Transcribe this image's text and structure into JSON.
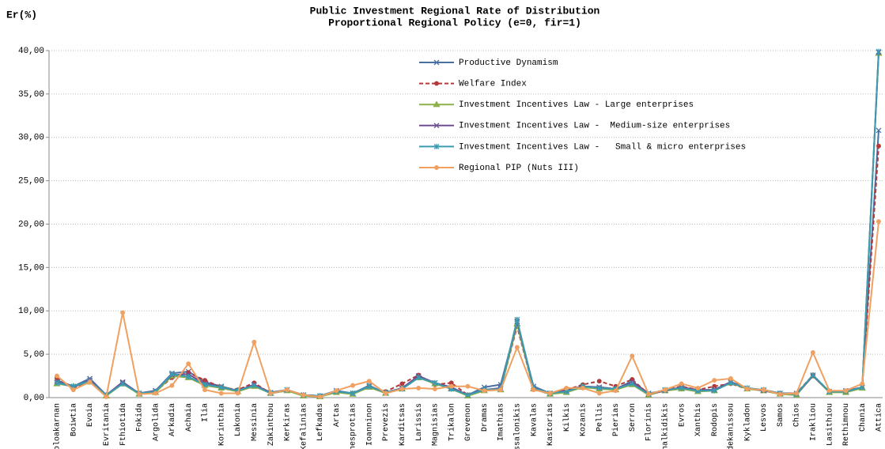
{
  "chart_data": {
    "type": "line",
    "title": "Public Investment Regional Rate of Distribution",
    "subtitle": "Proportional Regional Policy (e=0, fir=1)",
    "y_label": "Er(%)",
    "categories": [
      "itoloakarnan",
      "Boiwtia",
      "Evoia",
      "Evritania",
      "Fthiotida",
      "Fokida",
      "Argolida",
      "Arkadia",
      "Achaia",
      "Ilia",
      "Korinthia",
      "Lakonia",
      "Messinia",
      "Zakinthou",
      "Kerkiras",
      "Kefalinias",
      "Lefkadas",
      "Artas",
      "Thesprotias",
      "Ioanninon",
      "Prevezis",
      "Karditsas",
      "Larissis",
      "Magnisias",
      "Trikalon",
      "Grevenon",
      "Dramas",
      "Imathias",
      "essalonikis",
      "Kavalas",
      "Kastorias",
      "Kilkis",
      "Kozanis",
      "Pellis",
      "Pierias",
      "Serron",
      "Florinis",
      "Chalkidikis",
      "Evros",
      "Xanthis",
      "Rodopis",
      "odekanissou",
      "Kykladon",
      "Lesvos",
      "Samos",
      "Chios",
      "Irakliou",
      "Lasithiou",
      "Rethimnou",
      "Chania",
      "Attica"
    ],
    "series": [
      {
        "name": "Productive Dynamism",
        "color": "#4a6fa5",
        "marker": "x",
        "dash": false,
        "values": [
          2.0,
          1.3,
          2.2,
          0.3,
          1.7,
          0.5,
          0.8,
          2.8,
          3.0,
          1.8,
          1.3,
          0.8,
          1.5,
          0.6,
          0.9,
          0.3,
          0.2,
          0.8,
          0.5,
          1.4,
          0.5,
          1.1,
          2.4,
          1.7,
          1.2,
          0.3,
          1.2,
          1.5,
          8.7,
          1.3,
          0.5,
          0.9,
          1.3,
          1.2,
          1.0,
          1.9,
          0.5,
          0.8,
          1.2,
          0.9,
          0.9,
          1.8,
          1.1,
          0.8,
          0.5,
          0.5,
          2.5,
          0.7,
          0.8,
          1.2,
          30.8
        ]
      },
      {
        "name": "Welfare Index",
        "color": "#b23a3a",
        "marker": "circle",
        "dash": true,
        "values": [
          2.3,
          1.1,
          1.8,
          0.3,
          1.7,
          0.5,
          0.7,
          2.3,
          2.9,
          2.0,
          1.2,
          0.9,
          1.7,
          0.5,
          0.8,
          0.3,
          0.2,
          0.7,
          0.5,
          1.3,
          0.7,
          1.6,
          2.6,
          1.5,
          1.7,
          0.3,
          0.8,
          1.0,
          8.2,
          1.0,
          0.4,
          0.9,
          1.5,
          1.9,
          1.3,
          2.1,
          0.4,
          0.9,
          1.3,
          0.9,
          1.3,
          1.6,
          1.0,
          0.9,
          0.5,
          0.5,
          2.6,
          0.7,
          0.7,
          1.1,
          29.0
        ]
      },
      {
        "name": "Investment Incentives Law - Large enterprises",
        "color": "#8db04a",
        "marker": "triangle",
        "dash": false,
        "values": [
          1.6,
          1.3,
          1.8,
          0.2,
          1.6,
          0.4,
          0.6,
          2.5,
          2.3,
          1.4,
          1.1,
          0.7,
          1.3,
          0.5,
          0.8,
          0.2,
          0.1,
          0.6,
          0.4,
          1.2,
          0.5,
          1.0,
          2.3,
          1.6,
          1.0,
          0.2,
          0.8,
          0.9,
          8.5,
          1.0,
          0.4,
          0.6,
          1.2,
          1.0,
          0.9,
          1.5,
          0.3,
          0.8,
          1.0,
          0.7,
          0.8,
          1.7,
          1.0,
          0.8,
          0.4,
          0.3,
          2.5,
          0.6,
          0.6,
          1.1,
          39.7
        ]
      },
      {
        "name": "Investment Incentives Law -  Medium-size enterprises",
        "color": "#6f4e92",
        "marker": "x",
        "dash": false,
        "values": [
          1.8,
          1.2,
          2.0,
          0.3,
          1.8,
          0.5,
          0.8,
          2.6,
          2.7,
          1.6,
          1.2,
          0.8,
          1.5,
          0.5,
          0.9,
          0.3,
          0.2,
          0.7,
          0.5,
          1.3,
          0.6,
          1.1,
          2.5,
          1.7,
          1.1,
          0.3,
          0.9,
          1.1,
          8.8,
          1.1,
          0.5,
          0.8,
          1.3,
          1.2,
          1.0,
          1.8,
          0.4,
          0.8,
          1.2,
          0.8,
          0.9,
          1.8,
          1.1,
          0.8,
          0.5,
          0.4,
          2.5,
          0.7,
          0.7,
          1.2,
          39.8
        ]
      },
      {
        "name": "Investment Incentives Law -   Small & micro enterprises",
        "color": "#3b9cb0",
        "marker": "star",
        "dash": false,
        "values": [
          1.7,
          1.3,
          1.9,
          0.3,
          1.6,
          0.5,
          0.7,
          2.7,
          2.4,
          1.5,
          1.2,
          0.8,
          1.4,
          0.5,
          0.9,
          0.3,
          0.2,
          0.7,
          0.5,
          1.3,
          0.6,
          1.0,
          2.3,
          1.7,
          1.0,
          0.3,
          0.9,
          1.0,
          9.0,
          1.1,
          0.5,
          0.7,
          1.3,
          1.1,
          1.0,
          1.6,
          0.4,
          0.9,
          1.1,
          0.8,
          0.8,
          1.7,
          1.1,
          0.9,
          0.5,
          0.4,
          2.6,
          0.7,
          0.7,
          1.2,
          39.9
        ]
      },
      {
        "name": "Regional PIP (Nuts III)",
        "color": "#f0a060",
        "marker": "circle",
        "dash": false,
        "values": [
          2.5,
          0.9,
          1.8,
          0.1,
          9.8,
          0.4,
          0.5,
          1.4,
          3.9,
          0.9,
          0.5,
          0.5,
          6.4,
          0.5,
          0.9,
          0.3,
          0.1,
          0.8,
          1.4,
          1.9,
          0.5,
          1.0,
          1.1,
          1.0,
          1.3,
          1.3,
          0.8,
          0.9,
          5.8,
          0.9,
          0.5,
          1.1,
          1.1,
          0.5,
          0.8,
          4.8,
          0.4,
          0.9,
          1.6,
          1.1,
          2.0,
          2.2,
          1.0,
          0.9,
          0.4,
          0.5,
          5.2,
          0.8,
          0.8,
          1.6,
          20.3
        ]
      }
    ],
    "ylim": [
      0,
      40
    ],
    "yticks": [
      {
        "value": 0,
        "label": "0,00"
      },
      {
        "value": 5,
        "label": "5,00"
      },
      {
        "value": 10,
        "label": "10,00"
      },
      {
        "value": 15,
        "label": "15,00"
      },
      {
        "value": 20,
        "label": "20,00"
      },
      {
        "value": 25,
        "label": "25,00"
      },
      {
        "value": 30,
        "label": "30,00"
      },
      {
        "value": 35,
        "label": "35,00"
      },
      {
        "value": 40,
        "label": "40,00"
      }
    ],
    "grid": true
  }
}
